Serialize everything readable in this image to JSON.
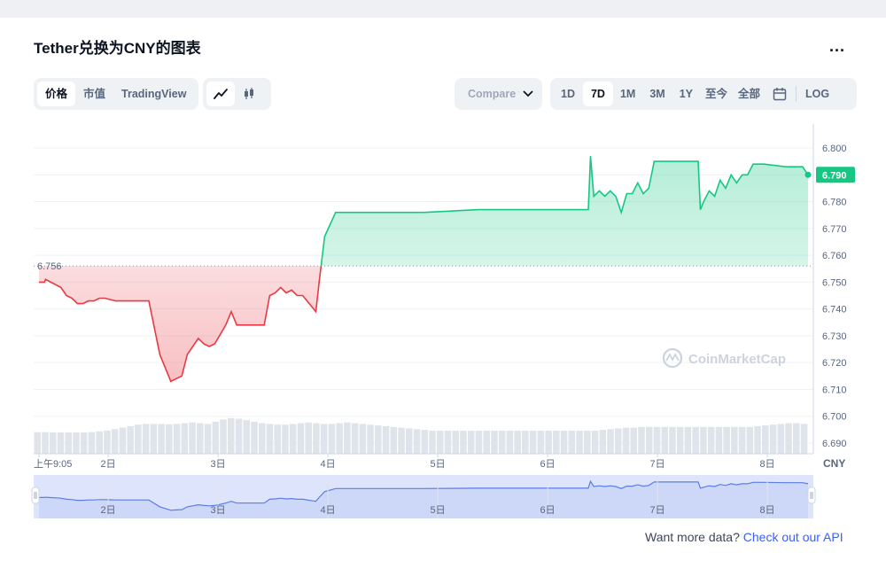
{
  "header": {
    "title": "Tether兑换为CNY的图表",
    "more_label": "..."
  },
  "view_tabs": [
    {
      "label": "价格",
      "active": true
    },
    {
      "label": "市值",
      "active": false
    },
    {
      "label": "TradingView",
      "active": false
    }
  ],
  "chart_style_icons": [
    {
      "icon": "line-chart-icon",
      "active": true
    },
    {
      "icon": "candlestick-icon",
      "active": false
    }
  ],
  "compare": {
    "label": "Compare with"
  },
  "ranges": [
    {
      "label": "1D",
      "active": false
    },
    {
      "label": "7D",
      "active": true
    },
    {
      "label": "1M",
      "active": false
    },
    {
      "label": "3M",
      "active": false
    },
    {
      "label": "1Y",
      "active": false
    },
    {
      "label": "至今",
      "active": false
    },
    {
      "label": "全部",
      "active": false
    }
  ],
  "calendar_icon": "calendar-icon",
  "log_label": "LOG",
  "watermark": "CoinMarketCap",
  "footer": {
    "text": "Want more data?",
    "link_text": "Check out our API"
  },
  "colors": {
    "up": "#16c784",
    "down": "#ea3943",
    "navigator_line": "#5b7ee5",
    "navigator_fill": "#dde4fb",
    "accent": "#3861fb"
  },
  "chart_data": {
    "type": "area",
    "baseline": {
      "value": 6.756,
      "label": "6.756"
    },
    "current": {
      "value": 6.79,
      "label": "6.790"
    },
    "currency": "CNY",
    "ylim": [
      6.69,
      6.805
    ],
    "yticks": [
      "6.800",
      "6.790",
      "6.780",
      "6.770",
      "6.760",
      "6.750",
      "6.740",
      "6.730",
      "6.720",
      "6.710",
      "6.700",
      "6.690"
    ],
    "xticks": [
      {
        "t": 0,
        "label": "上午9:05"
      },
      {
        "t": 0.63,
        "label": "2日"
      },
      {
        "t": 1.63,
        "label": "3日"
      },
      {
        "t": 2.63,
        "label": "4日"
      },
      {
        "t": 3.63,
        "label": "5日"
      },
      {
        "t": 4.63,
        "label": "6日"
      },
      {
        "t": 5.63,
        "label": "7日"
      },
      {
        "t": 6.63,
        "label": "8日"
      }
    ],
    "t_range": [
      0,
      7
    ],
    "series": [
      {
        "x": [
          0,
          0.05,
          0.06,
          0.2,
          0.25,
          0.3,
          0.35,
          0.4,
          0.45,
          0.5,
          0.55,
          0.6,
          0.7,
          0.8,
          0.9,
          1.0,
          1.1,
          1.2,
          1.25,
          1.3,
          1.35,
          1.4,
          1.45,
          1.5,
          1.55,
          1.6,
          1.7,
          1.75,
          1.8,
          1.9,
          2.0,
          2.05,
          2.1,
          2.15,
          2.2,
          2.25,
          2.3,
          2.35,
          2.4,
          2.5,
          2.52,
          2.55,
          2.6,
          2.7,
          2.8,
          2.9,
          3.0,
          3.5,
          4.0,
          4.5,
          5.0,
          5.02,
          5.05,
          5.1,
          5.15,
          5.2,
          5.25,
          5.3,
          5.35,
          5.4,
          5.45,
          5.5,
          5.55,
          5.6,
          5.8,
          6.0,
          6.02,
          6.05,
          6.1,
          6.15,
          6.2,
          6.25,
          6.3,
          6.35,
          6.4,
          6.45,
          6.5,
          6.6,
          6.8,
          6.95,
          7.0
        ],
        "y": [
          6.75,
          6.75,
          6.751,
          6.748,
          6.745,
          6.744,
          6.742,
          6.742,
          6.743,
          6.743,
          6.744,
          6.744,
          6.743,
          6.743,
          6.743,
          6.743,
          6.723,
          6.713,
          6.714,
          6.715,
          6.723,
          6.726,
          6.729,
          6.727,
          6.726,
          6.727,
          6.734,
          6.739,
          6.734,
          6.734,
          6.734,
          6.734,
          6.745,
          6.746,
          6.748,
          6.746,
          6.747,
          6.745,
          6.745,
          6.74,
          6.739,
          6.75,
          6.767,
          6.776,
          6.776,
          6.776,
          6.776,
          6.776,
          6.777,
          6.777,
          6.777,
          6.797,
          6.782,
          6.784,
          6.782,
          6.784,
          6.782,
          6.776,
          6.783,
          6.783,
          6.787,
          6.783,
          6.785,
          6.795,
          6.795,
          6.795,
          6.777,
          6.78,
          6.784,
          6.782,
          6.788,
          6.785,
          6.79,
          6.787,
          6.79,
          6.79,
          6.794,
          6.794,
          6.793,
          6.793,
          6.79
        ]
      }
    ],
    "volume": [
      0.58,
      0.58,
      0.57,
      0.57,
      0.57,
      0.57,
      0.57,
      0.58,
      0.6,
      0.62,
      0.66,
      0.7,
      0.74,
      0.78,
      0.8,
      0.8,
      0.8,
      0.79,
      0.8,
      0.82,
      0.84,
      0.82,
      0.8,
      0.86,
      0.92,
      0.96,
      0.94,
      0.9,
      0.86,
      0.82,
      0.8,
      0.78,
      0.78,
      0.8,
      0.82,
      0.84,
      0.82,
      0.8,
      0.8,
      0.82,
      0.84,
      0.82,
      0.8,
      0.78,
      0.76,
      0.74,
      0.72,
      0.7,
      0.68,
      0.66,
      0.64,
      0.62,
      0.62,
      0.62,
      0.62,
      0.62,
      0.62,
      0.62,
      0.62,
      0.62,
      0.62,
      0.62,
      0.62,
      0.62,
      0.62,
      0.62,
      0.62,
      0.62,
      0.62,
      0.62,
      0.62,
      0.62,
      0.62,
      0.64,
      0.66,
      0.68,
      0.7,
      0.7,
      0.72,
      0.72,
      0.72,
      0.72,
      0.72,
      0.72,
      0.72,
      0.72,
      0.72,
      0.72,
      0.72,
      0.72,
      0.72,
      0.72,
      0.72,
      0.74,
      0.76,
      0.78,
      0.8,
      0.82,
      0.82,
      0.8
    ]
  }
}
